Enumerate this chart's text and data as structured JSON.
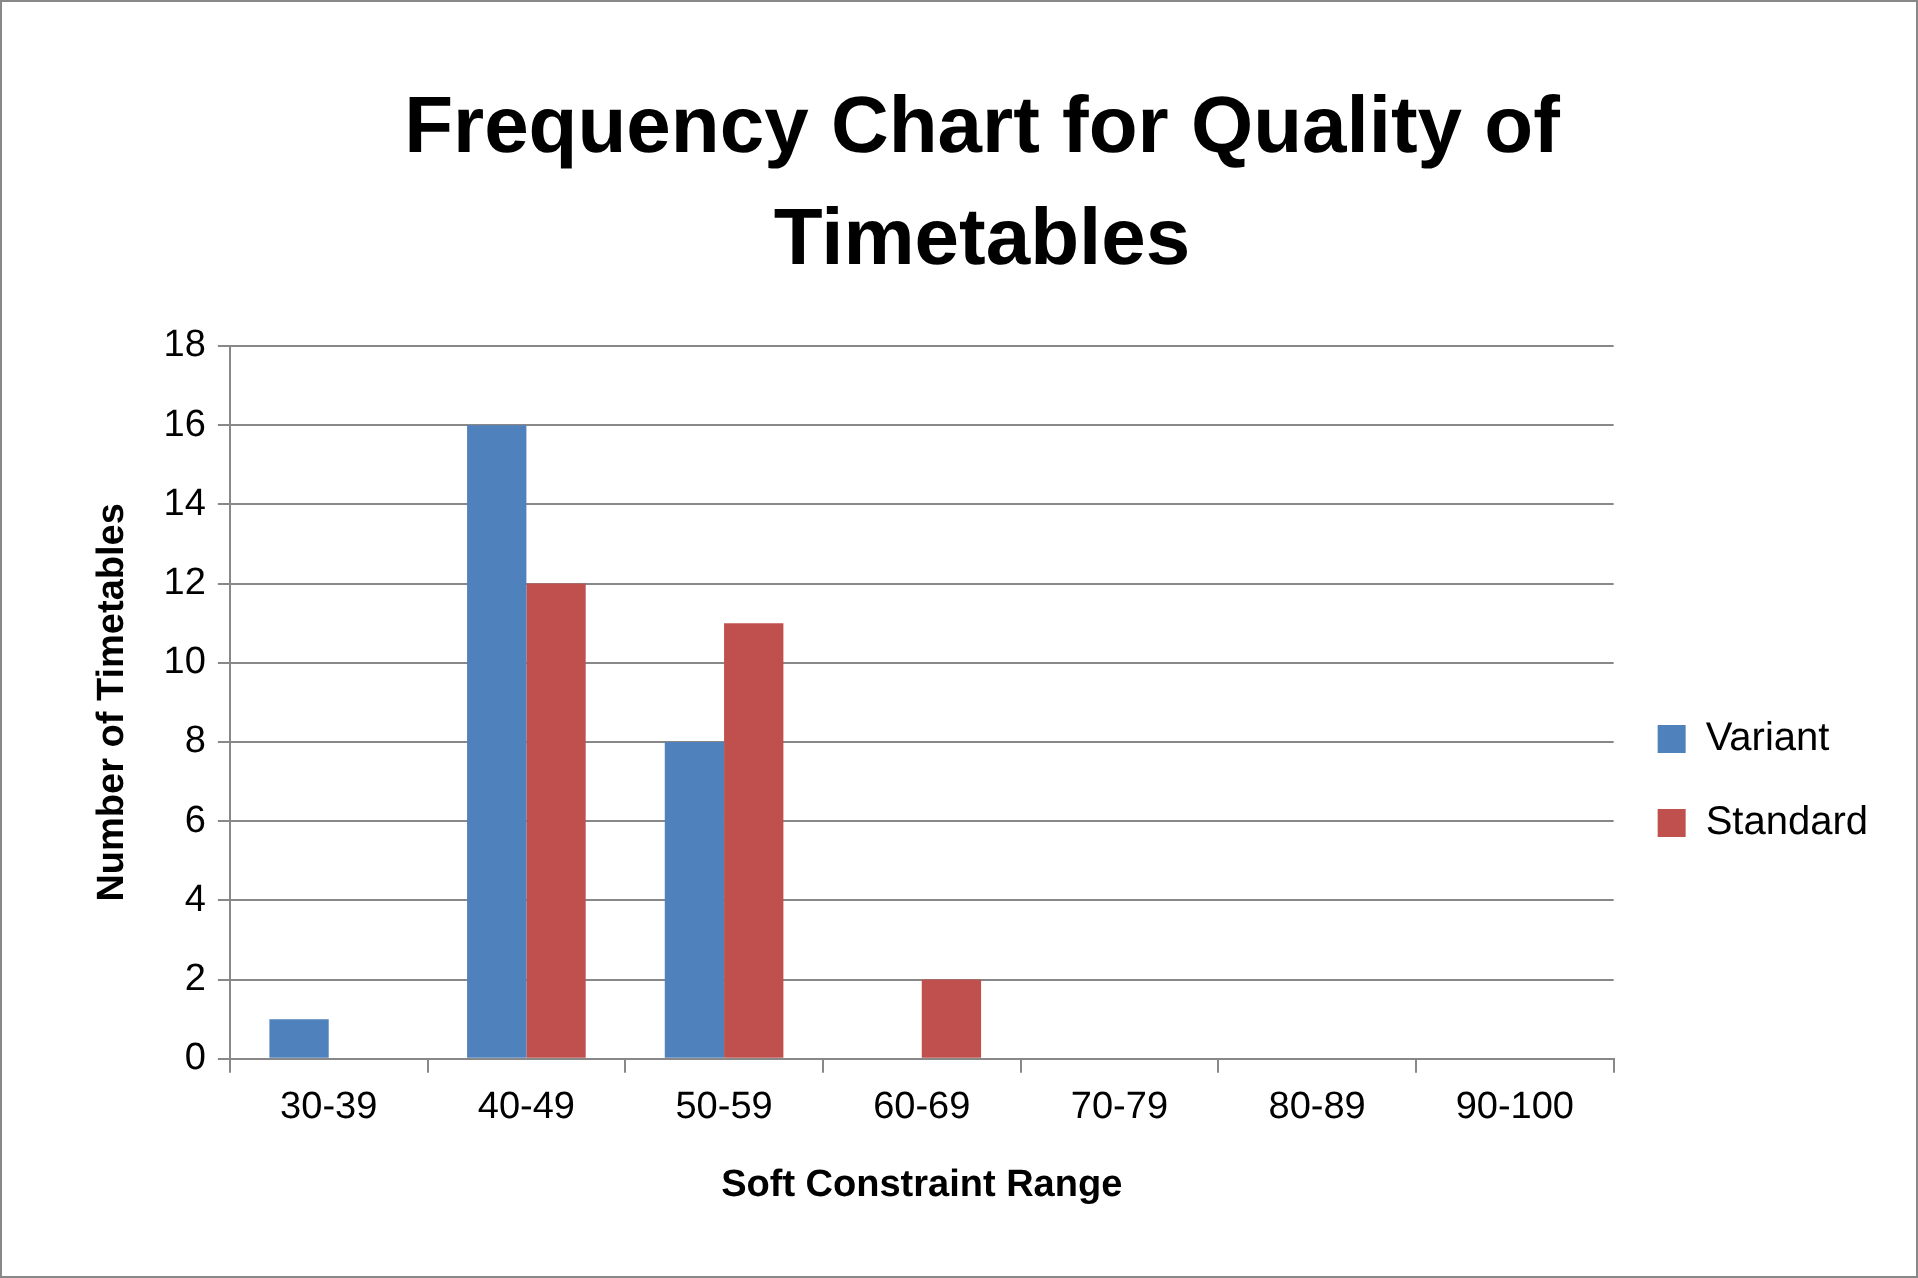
{
  "chart_data": {
    "type": "bar",
    "title": "Frequency Chart for Quality of Timetables",
    "xlabel": "Soft Constraint Range",
    "ylabel": "Number of Timetables",
    "categories": [
      "30-39",
      "40-49",
      "50-59",
      "60-69",
      "70-79",
      "80-89",
      "90-100"
    ],
    "series": [
      {
        "name": "Variant",
        "color": "#4f81bd",
        "values": [
          1,
          16,
          8,
          0,
          0,
          0,
          0
        ]
      },
      {
        "name": "Standard",
        "color": "#c0504d",
        "values": [
          0,
          12,
          11,
          2,
          0,
          0,
          0
        ]
      }
    ],
    "ylim": [
      0,
      18
    ],
    "yticks": [
      0,
      2,
      4,
      6,
      8,
      10,
      12,
      14,
      16,
      18
    ],
    "grid": "y",
    "legend": "right"
  }
}
